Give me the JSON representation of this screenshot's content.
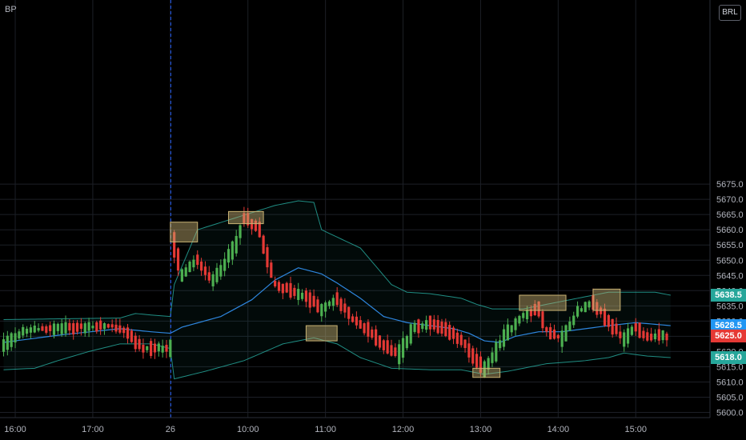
{
  "symbol": "BP",
  "currency": "BRL",
  "colors": {
    "background": "#000000",
    "grid": "#1c1f26",
    "up": "#26a69a",
    "up_candle": "#4caf50",
    "down": "#e53935",
    "band": "#26a69a",
    "basis": "#2e86de",
    "session_line": "#2962ff",
    "highlight": "#c8b273"
  },
  "tags": {
    "upper": {
      "value": "5638.5",
      "color": "#26a69a"
    },
    "basis": {
      "value": "5628.5",
      "color": "#2196f3"
    },
    "last": {
      "value": "5625.0",
      "color": "#e53935"
    },
    "lower": {
      "value": "5618.0",
      "color": "#26a69a"
    }
  },
  "chart_data": {
    "type": "candlestick",
    "overlay": "bollinger_bands",
    "ylim": [
      5600,
      5680
    ],
    "y_ticks": [
      "5600.0",
      "5605.0",
      "5610.0",
      "5615.0",
      "5620.0",
      "5625.0",
      "5630.0",
      "5635.0",
      "5640.0",
      "5645.0",
      "5650.0",
      "5655.0",
      "5660.0",
      "5665.0",
      "5670.0",
      "5675.0"
    ],
    "x_ticks": [
      "16:00",
      "17:00",
      "26",
      "10:00",
      "11:00",
      "12:00",
      "13:00",
      "14:00",
      "15:00"
    ],
    "x_tick_bars": [
      3,
      23,
      43,
      63,
      83,
      103,
      123,
      143,
      163
    ],
    "session_break_bar": 43,
    "bars_count": 172,
    "upper_band": [
      [
        0,
        5630.5
      ],
      [
        30,
        5631
      ],
      [
        34,
        5632.5
      ],
      [
        38,
        5632
      ],
      [
        43,
        5631.5
      ],
      [
        44,
        5642
      ],
      [
        50,
        5660
      ],
      [
        60,
        5664
      ],
      [
        70,
        5668
      ],
      [
        76,
        5669.5
      ],
      [
        80,
        5669
      ],
      [
        82,
        5660
      ],
      [
        92,
        5654
      ],
      [
        96,
        5648
      ],
      [
        100,
        5642
      ],
      [
        104,
        5639.5
      ],
      [
        110,
        5639
      ],
      [
        118,
        5637.5
      ],
      [
        122,
        5635.5
      ],
      [
        126,
        5634
      ],
      [
        134,
        5634
      ],
      [
        140,
        5635.5
      ],
      [
        150,
        5638
      ],
      [
        156,
        5639.5
      ],
      [
        168,
        5639.5
      ],
      [
        172,
        5638.5
      ]
    ],
    "basis": [
      [
        0,
        5623
      ],
      [
        15,
        5625.5
      ],
      [
        30,
        5627.5
      ],
      [
        38,
        5626.5
      ],
      [
        43,
        5626
      ],
      [
        46,
        5628
      ],
      [
        56,
        5631.5
      ],
      [
        64,
        5637
      ],
      [
        70,
        5643.5
      ],
      [
        76,
        5647.5
      ],
      [
        82,
        5645.5
      ],
      [
        86,
        5642.5
      ],
      [
        92,
        5637.5
      ],
      [
        98,
        5631.5
      ],
      [
        104,
        5629.5
      ],
      [
        110,
        5628.5
      ],
      [
        116,
        5627.5
      ],
      [
        120,
        5626
      ],
      [
        124,
        5623.5
      ],
      [
        128,
        5623
      ],
      [
        132,
        5625
      ],
      [
        138,
        5626.5
      ],
      [
        144,
        5626.5
      ],
      [
        150,
        5627.5
      ],
      [
        156,
        5628.5
      ],
      [
        163,
        5629.5
      ],
      [
        172,
        5628.5
      ]
    ],
    "lower_band": [
      [
        0,
        5614
      ],
      [
        8,
        5614.5
      ],
      [
        14,
        5617
      ],
      [
        22,
        5620
      ],
      [
        30,
        5622.5
      ],
      [
        38,
        5622.5
      ],
      [
        43,
        5621
      ],
      [
        44,
        5611
      ],
      [
        52,
        5613.5
      ],
      [
        62,
        5617
      ],
      [
        72,
        5622.5
      ],
      [
        80,
        5624.5
      ],
      [
        86,
        5622.5
      ],
      [
        92,
        5618
      ],
      [
        100,
        5614.5
      ],
      [
        110,
        5614
      ],
      [
        118,
        5614
      ],
      [
        124,
        5612.5
      ],
      [
        130,
        5613.5
      ],
      [
        140,
        5616
      ],
      [
        150,
        5617
      ],
      [
        156,
        5618
      ],
      [
        160,
        5619.5
      ],
      [
        166,
        5618.5
      ],
      [
        172,
        5618
      ]
    ],
    "price_path": [
      [
        0,
        5622
      ],
      [
        6,
        5627
      ],
      [
        12,
        5627.5
      ],
      [
        20,
        5628
      ],
      [
        28,
        5628.5
      ],
      [
        32,
        5626
      ],
      [
        36,
        5621
      ],
      [
        43,
        5621
      ],
      [
        44,
        5655
      ],
      [
        46,
        5645
      ],
      [
        50,
        5650
      ],
      [
        54,
        5643
      ],
      [
        58,
        5651
      ],
      [
        60,
        5655
      ],
      [
        62,
        5664
      ],
      [
        66,
        5660
      ],
      [
        70,
        5642
      ],
      [
        74,
        5640
      ],
      [
        78,
        5638
      ],
      [
        82,
        5634
      ],
      [
        86,
        5637
      ],
      [
        90,
        5631
      ],
      [
        94,
        5627
      ],
      [
        98,
        5622
      ],
      [
        102,
        5619
      ],
      [
        106,
        5628
      ],
      [
        110,
        5629
      ],
      [
        114,
        5627
      ],
      [
        118,
        5624
      ],
      [
        122,
        5617
      ],
      [
        124,
        5614
      ],
      [
        126,
        5618
      ],
      [
        130,
        5626
      ],
      [
        134,
        5632
      ],
      [
        138,
        5634
      ],
      [
        140,
        5627
      ],
      [
        144,
        5624
      ],
      [
        148,
        5633
      ],
      [
        152,
        5636
      ],
      [
        156,
        5630
      ],
      [
        160,
        5624
      ],
      [
        163,
        5628
      ],
      [
        166,
        5625
      ]
    ],
    "highlight_boxes": [
      {
        "bar_range": [
          43,
          50
        ],
        "price_range": [
          5656,
          5662.5
        ]
      },
      {
        "bar_range": [
          58,
          67
        ],
        "price_range": [
          5662,
          5666
        ]
      },
      {
        "bar_range": [
          78,
          86
        ],
        "price_range": [
          5623.5,
          5628.5
        ]
      },
      {
        "bar_range": [
          121,
          128
        ],
        "price_range": [
          5611.5,
          5614.5
        ]
      },
      {
        "bar_range": [
          133,
          145
        ],
        "price_range": [
          5633.5,
          5638.5
        ]
      },
      {
        "bar_range": [
          152,
          159
        ],
        "price_range": [
          5633.5,
          5640.5
        ]
      }
    ]
  }
}
